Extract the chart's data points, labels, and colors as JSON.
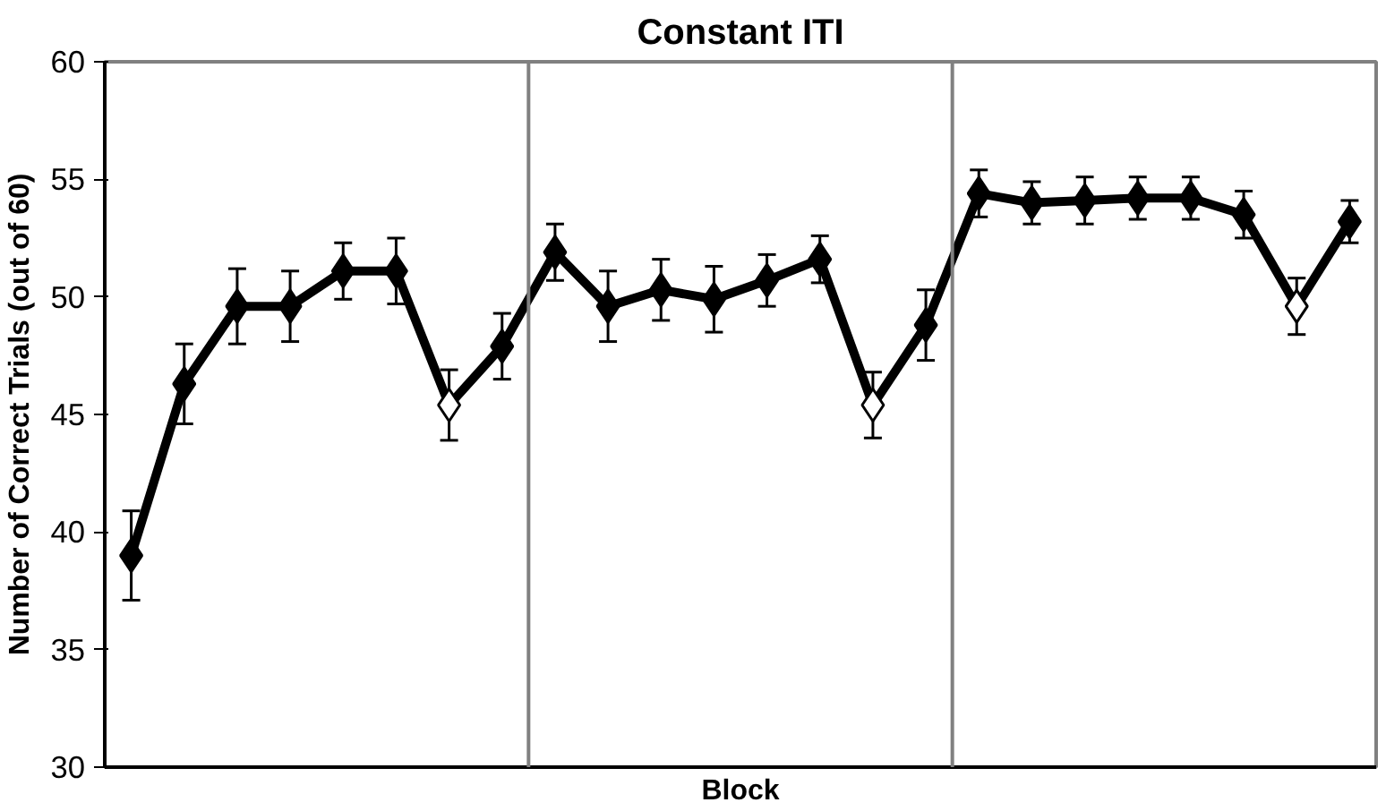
{
  "chart_data": {
    "type": "line",
    "title": "Constant ITI",
    "xlabel": "Block",
    "ylabel": "Number of Correct Trials (out of 60)",
    "categories": [
      null,
      null,
      null,
      null,
      null,
      null,
      null,
      null,
      null,
      null,
      null,
      null,
      null,
      null,
      null,
      null,
      null,
      null,
      null,
      null,
      null,
      null,
      null,
      null
    ],
    "series": [
      {
        "color": "#000000",
        "values": [
          39.0,
          46.3,
          49.6,
          49.6,
          51.1,
          51.1,
          45.4,
          47.9,
          51.9,
          49.6,
          50.3,
          49.9,
          50.7,
          51.6,
          45.4,
          48.8,
          54.4,
          54.0,
          54.1,
          54.2,
          54.2,
          53.5,
          49.6,
          53.2
        ],
        "errors": [
          1.9,
          1.7,
          1.6,
          1.5,
          1.2,
          1.4,
          1.5,
          1.4,
          1.2,
          1.5,
          1.3,
          1.4,
          1.1,
          1.0,
          1.4,
          1.5,
          1.0,
          0.9,
          1.0,
          0.9,
          0.9,
          1.0,
          1.2,
          0.9
        ],
        "colors": [
          "#000000",
          "#000000",
          "#000000",
          "#000000",
          "#000000",
          "#000000",
          "#ffffff",
          "#000000",
          "#000000",
          "#000000",
          "#000000",
          "#000000",
          "#000000",
          "#000000",
          "#ffffff",
          "#000000",
          "#000000",
          "#000000",
          "#000000",
          "#000000",
          "#000000",
          "#000000",
          "#ffffff",
          "#000000"
        ]
      }
    ],
    "ylim": [
      30,
      60
    ],
    "yticks": [
      30,
      35,
      40,
      45,
      50,
      55,
      60
    ],
    "marker": "diamond",
    "line_style": "solid",
    "grid": false
  }
}
